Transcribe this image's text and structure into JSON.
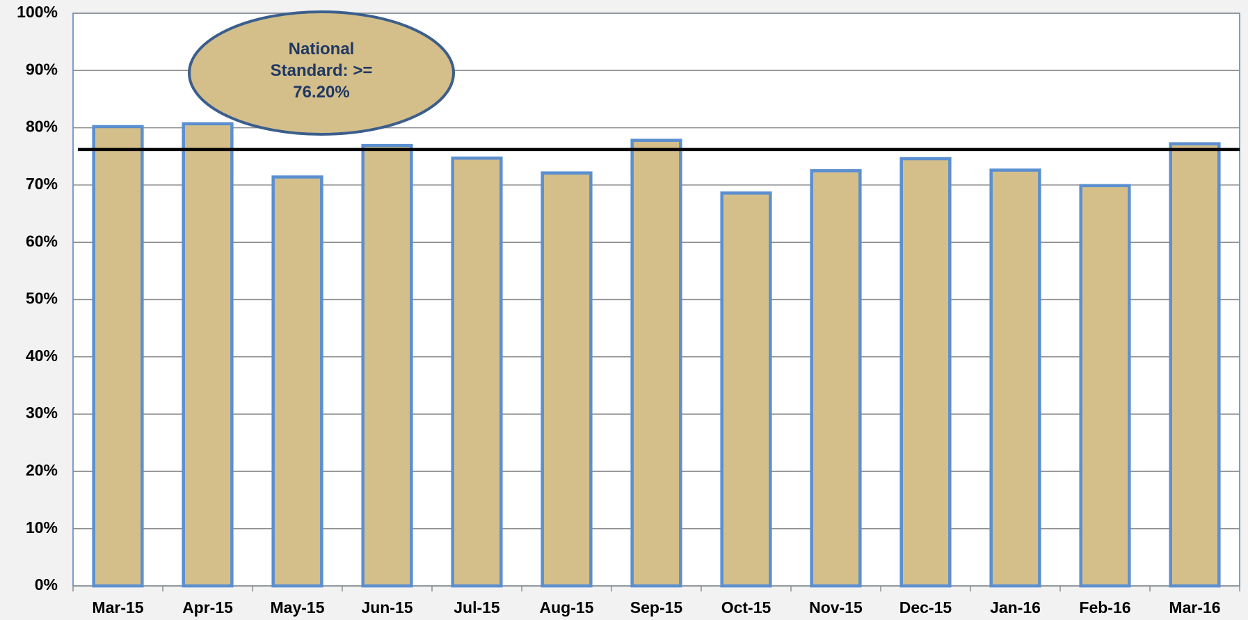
{
  "chart_data": {
    "type": "bar",
    "categories": [
      "Mar-15",
      "Apr-15",
      "May-15",
      "Jun-15",
      "Jul-15",
      "Aug-15",
      "Sep-15",
      "Oct-15",
      "Nov-15",
      "Dec-15",
      "Jan-16",
      "Feb-16",
      "Mar-16"
    ],
    "values": [
      80.2,
      80.7,
      71.4,
      76.9,
      74.7,
      72.1,
      77.8,
      68.6,
      72.5,
      74.6,
      72.6,
      69.9,
      77.2
    ],
    "color": "#d4bf8a",
    "edge_color": "#5b8fd0",
    "ylim": [
      0,
      100
    ],
    "yticks": [
      {
        "value": 0,
        "label": "0%"
      },
      {
        "value": 10,
        "label": "10%"
      },
      {
        "value": 20,
        "label": "20%"
      },
      {
        "value": 30,
        "label": "30%"
      },
      {
        "value": 40,
        "label": "40%"
      },
      {
        "value": 50,
        "label": "50%"
      },
      {
        "value": 60,
        "label": "60%"
      },
      {
        "value": 70,
        "label": "70%"
      },
      {
        "value": 80,
        "label": "80%"
      },
      {
        "value": 90,
        "label": "90%"
      },
      {
        "value": 100,
        "label": "100%"
      }
    ],
    "grid": true,
    "reference_line": {
      "value": 76.2,
      "color": "#000000"
    },
    "annotation": "National Standard: >= 76.20%"
  }
}
